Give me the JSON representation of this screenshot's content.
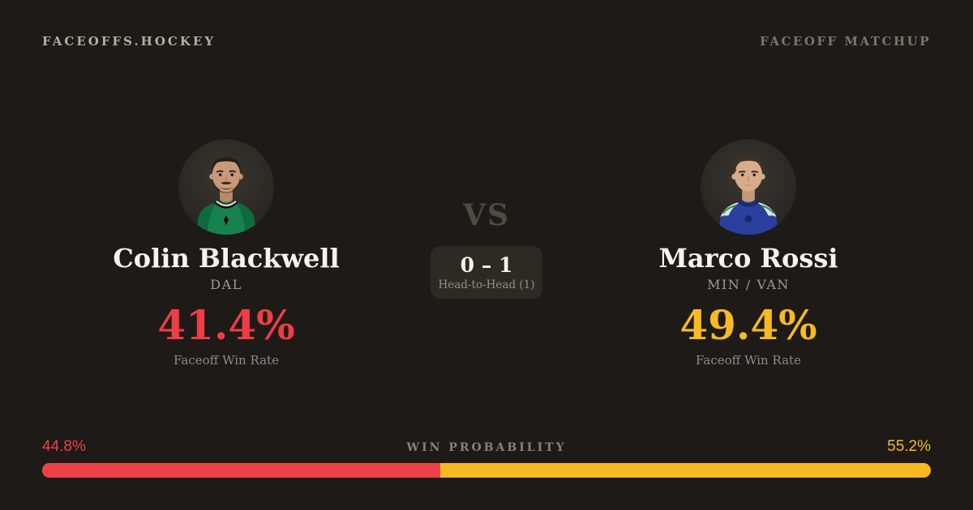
{
  "page": {
    "background": "#1e1a17"
  },
  "header": {
    "brand": "FACEOFFS.HOCKEY",
    "context_label": "FACEOFF MATCHUP"
  },
  "matchup": {
    "vs_label": "VS",
    "head_to_head": {
      "score": "0 – 1",
      "label": "Head-to-Head (1)"
    }
  },
  "players": {
    "left": {
      "name": "Colin Blackwell",
      "team": "DAL",
      "win_rate": "41.4%",
      "win_rate_label": "Faceoff Win Rate",
      "accent": "#ef3d45",
      "avatar": "colin-blackwell-headshot-green-dallas-jersey"
    },
    "right": {
      "name": "Marco Rossi",
      "team": "MIN / VAN",
      "win_rate": "49.4%",
      "win_rate_label": "Faceoff Win Rate",
      "accent": "#f7ba20",
      "avatar": "marco-rossi-headshot-blue-vancouver-jersey"
    }
  },
  "win_probability": {
    "label": "WIN PROBABILITY",
    "left_pct": "44.8%",
    "right_pct": "55.2%",
    "left_value": 44.8,
    "right_value": 55.2,
    "left_color": "#ee4047",
    "right_color": "#f7ba20"
  }
}
